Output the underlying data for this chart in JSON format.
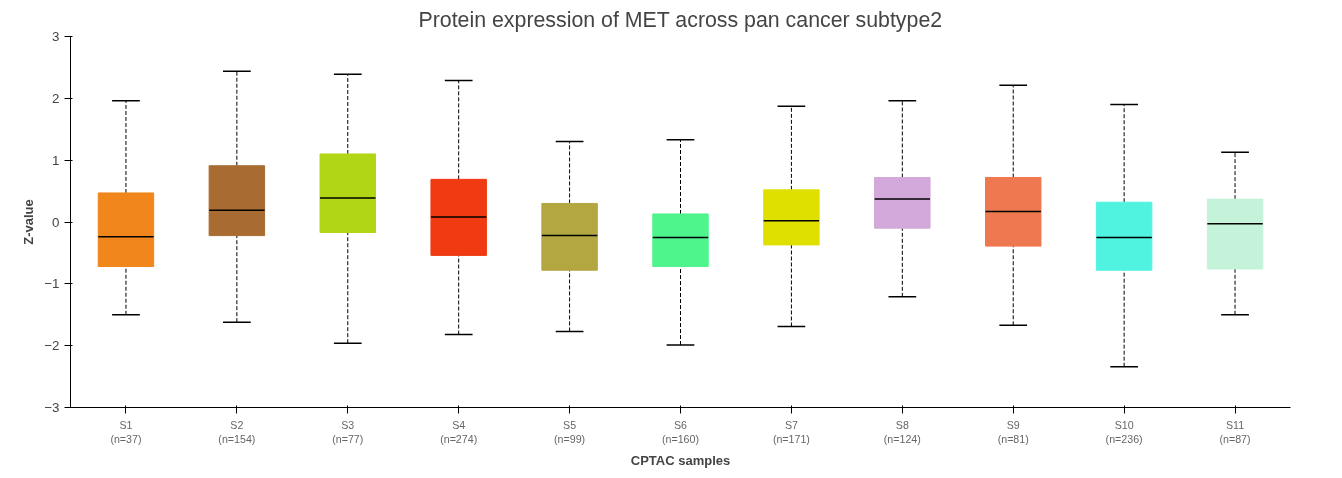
{
  "chart_data": {
    "type": "box",
    "title": "Protein expression of MET across pan cancer subtype2",
    "xlabel": "CPTAC samples",
    "ylabel": "Z-value",
    "categories": [
      "S1\n(n=37)",
      "S2\n(n=154)",
      "S3\n(n=77)",
      "S4\n(n=274)",
      "S5\n(n=99)",
      "S6\n(n=160)",
      "S7\n(n=171)",
      "S8\n(n=124)",
      "S9\n(n=81)",
      "S10\n(n=236)",
      "S11\n(n=87)"
    ],
    "colors": [
      "#f0861c",
      "#a86c33",
      "#b0d615",
      "#ef3a12",
      "#b3a742",
      "#4ef58c",
      "#e0e000",
      "#d3a8da",
      "#f07850",
      "#50f3e0",
      "#c4f3da"
    ],
    "boxes": [
      {
        "low": -1.5,
        "q1": -0.72,
        "median": -0.24,
        "q3": 0.47,
        "high": 1.96
      },
      {
        "low": -1.62,
        "q1": -0.22,
        "median": 0.19,
        "q3": 0.91,
        "high": 2.44
      },
      {
        "low": -1.96,
        "q1": -0.17,
        "median": 0.39,
        "q3": 1.1,
        "high": 2.39
      },
      {
        "low": -1.82,
        "q1": -0.54,
        "median": 0.08,
        "q3": 0.69,
        "high": 2.29
      },
      {
        "low": -1.77,
        "q1": -0.78,
        "median": -0.22,
        "q3": 0.3,
        "high": 1.3
      },
      {
        "low": -1.99,
        "q1": -0.72,
        "median": -0.25,
        "q3": 0.13,
        "high": 1.33
      },
      {
        "low": -1.69,
        "q1": -0.37,
        "median": 0.02,
        "q3": 0.52,
        "high": 1.87
      },
      {
        "low": -1.21,
        "q1": -0.1,
        "median": 0.37,
        "q3": 0.72,
        "high": 1.96
      },
      {
        "low": -1.67,
        "q1": -0.39,
        "median": 0.17,
        "q3": 0.72,
        "high": 2.21
      },
      {
        "low": -2.34,
        "q1": -0.78,
        "median": -0.25,
        "q3": 0.32,
        "high": 1.9
      },
      {
        "low": -1.5,
        "q1": -0.76,
        "median": -0.03,
        "q3": 0.37,
        "high": 1.13
      }
    ],
    "ylim": [
      -3,
      3
    ],
    "yticks": [
      -3,
      -2,
      -1,
      0,
      1,
      2,
      3
    ],
    "grid": false,
    "line_style": "dashed"
  }
}
